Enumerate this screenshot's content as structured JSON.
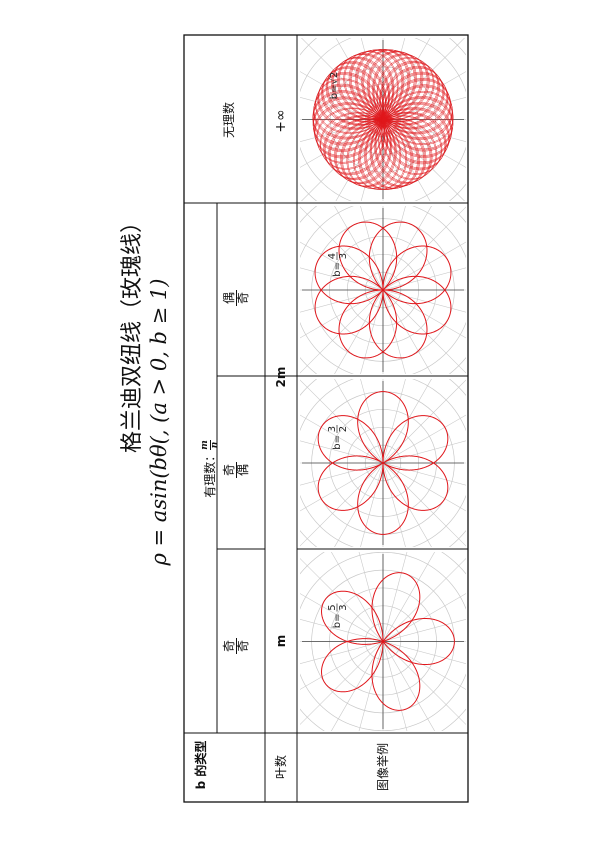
{
  "title": "格兰迪双纽线（玫瑰线）",
  "formula": "ρ = asin(bθ(,     (a > 0, b ≥ 1)",
  "header": {
    "row_type_label": "b 的类型",
    "row_leaves_label": "叶数",
    "row_example_label": "图像举例",
    "rational_label": "有理数：",
    "rational_frac_num": "m",
    "rational_frac_den": "n",
    "irrational_label": "无理数"
  },
  "columns": [
    {
      "type_num": "奇",
      "type_den": "奇",
      "leaves": "m",
      "b_num": "5",
      "b_den": "3",
      "petals": 5
    },
    {
      "type_num": "奇",
      "type_den": "偶",
      "leaves": "2m",
      "b_num": "3",
      "b_den": "2",
      "petals": 6
    },
    {
      "type_num": "偶",
      "type_den": "奇",
      "leaves": "2m",
      "b_num": "4",
      "b_den": "3",
      "petals": 8
    },
    {
      "type_text": "无理数",
      "leaves": "+∞",
      "b_text": "√2"
    }
  ],
  "colors": {
    "curve": "#e0161b",
    "grid": "#c9c9c9",
    "border": "#111111"
  }
}
